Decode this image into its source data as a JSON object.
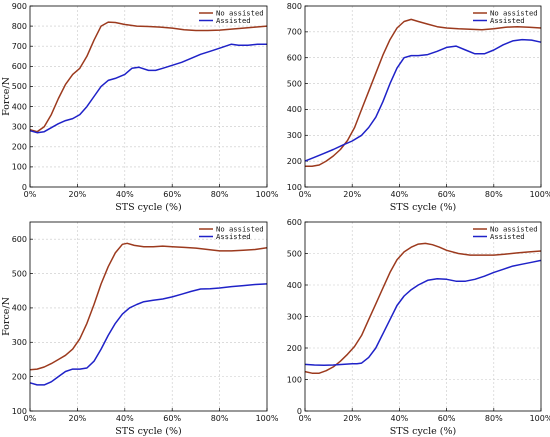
{
  "chart_data": [
    {
      "type": "line",
      "xlabel": "STS cycle (%)",
      "ylabel": "Force/N",
      "xlim": [
        0,
        100
      ],
      "ylim": [
        0,
        900
      ],
      "xticks": [
        "0%",
        "20%",
        "40%",
        "60%",
        "80%",
        "100%"
      ],
      "yticks": [
        "0",
        "100",
        "200",
        "300",
        "400",
        "500",
        "600",
        "700",
        "800",
        "900"
      ],
      "grid": true,
      "legend": "top-right",
      "series": [
        {
          "name": "No assisted",
          "color": "#9c3a1e",
          "x": [
            0,
            3,
            6,
            9,
            12,
            15,
            18,
            21,
            24,
            27,
            30,
            33,
            36,
            40,
            45,
            50,
            55,
            60,
            65,
            70,
            75,
            80,
            85,
            90,
            95,
            100
          ],
          "y": [
            285,
            275,
            300,
            360,
            440,
            510,
            560,
            590,
            650,
            730,
            800,
            820,
            818,
            808,
            800,
            798,
            795,
            790,
            782,
            778,
            778,
            780,
            785,
            790,
            795,
            800
          ]
        },
        {
          "name": "Assisted",
          "color": "#1f22c8",
          "x": [
            0,
            3,
            6,
            9,
            12,
            15,
            18,
            21,
            24,
            27,
            30,
            33,
            36,
            40,
            43,
            46,
            50,
            53,
            56,
            60,
            64,
            68,
            72,
            76,
            80,
            85,
            88,
            92,
            96,
            100
          ],
          "y": [
            280,
            270,
            275,
            295,
            315,
            330,
            340,
            360,
            400,
            450,
            500,
            530,
            540,
            560,
            590,
            595,
            580,
            580,
            590,
            605,
            620,
            640,
            660,
            675,
            690,
            710,
            705,
            705,
            710,
            710
          ]
        }
      ]
    },
    {
      "type": "line",
      "xlabel": "STS cycle (%)",
      "ylabel": "",
      "xlim": [
        0,
        100
      ],
      "ylim": [
        100,
        800
      ],
      "xticks": [
        "0%",
        "20%",
        "40%",
        "60%",
        "80%",
        "100%"
      ],
      "yticks": [
        "100",
        "200",
        "300",
        "400",
        "500",
        "600",
        "700",
        "800"
      ],
      "grid": true,
      "legend": "top-right",
      "series": [
        {
          "name": "No assisted",
          "color": "#9c3a1e",
          "x": [
            0,
            3,
            6,
            9,
            12,
            15,
            18,
            21,
            24,
            27,
            30,
            33,
            36,
            39,
            42,
            45,
            48,
            52,
            56,
            60,
            65,
            70,
            75,
            80,
            85,
            90,
            95,
            100
          ],
          "y": [
            180,
            180,
            185,
            200,
            220,
            245,
            280,
            330,
            400,
            470,
            540,
            610,
            670,
            715,
            740,
            748,
            740,
            730,
            720,
            715,
            712,
            710,
            708,
            712,
            718,
            720,
            718,
            715
          ]
        },
        {
          "name": "Assisted",
          "color": "#1f22c8",
          "x": [
            0,
            4,
            8,
            12,
            16,
            20,
            24,
            27,
            30,
            33,
            36,
            39,
            42,
            45,
            48,
            52,
            56,
            60,
            64,
            68,
            72,
            76,
            80,
            84,
            88,
            92,
            96,
            100
          ],
          "y": [
            200,
            215,
            230,
            245,
            262,
            278,
            300,
            330,
            370,
            430,
            500,
            560,
            600,
            608,
            608,
            612,
            625,
            640,
            645,
            630,
            615,
            615,
            630,
            650,
            665,
            670,
            668,
            660
          ]
        }
      ]
    },
    {
      "type": "line",
      "xlabel": "STS cycle (%)",
      "ylabel": "Force/N",
      "xlim": [
        0,
        100
      ],
      "ylim": [
        100,
        650
      ],
      "xticks": [
        "0%",
        "20%",
        "40%",
        "60%",
        "80%",
        "100%"
      ],
      "yticks": [
        "100",
        "200",
        "300",
        "400",
        "500",
        "600"
      ],
      "grid": true,
      "legend": "top-right",
      "series": [
        {
          "name": "No assisted",
          "color": "#9c3a1e",
          "x": [
            0,
            3,
            6,
            9,
            12,
            15,
            18,
            21,
            24,
            27,
            30,
            33,
            36,
            39,
            41,
            44,
            48,
            52,
            56,
            60,
            65,
            70,
            75,
            80,
            85,
            90,
            95,
            100
          ],
          "y": [
            220,
            222,
            228,
            238,
            250,
            262,
            280,
            310,
            355,
            410,
            470,
            520,
            560,
            585,
            588,
            582,
            578,
            578,
            580,
            578,
            576,
            574,
            570,
            566,
            566,
            568,
            570,
            575
          ]
        },
        {
          "name": "Assisted",
          "color": "#1f22c8",
          "x": [
            0,
            3,
            6,
            9,
            12,
            15,
            18,
            21,
            24,
            27,
            30,
            33,
            36,
            39,
            42,
            45,
            48,
            52,
            56,
            60,
            64,
            68,
            72,
            76,
            80,
            85,
            90,
            95,
            100
          ],
          "y": [
            182,
            176,
            176,
            185,
            200,
            215,
            222,
            222,
            225,
            245,
            280,
            320,
            355,
            382,
            400,
            410,
            418,
            422,
            426,
            432,
            440,
            448,
            455,
            456,
            458,
            462,
            465,
            468,
            470
          ]
        }
      ]
    },
    {
      "type": "line",
      "xlabel": "STS cycle (%)",
      "ylabel": "",
      "xlim": [
        0,
        100
      ],
      "ylim": [
        0,
        600
      ],
      "xticks": [
        "0%",
        "20%",
        "40%",
        "60%",
        "80%",
        "100%"
      ],
      "yticks": [
        "0",
        "100",
        "200",
        "300",
        "400",
        "500",
        "600"
      ],
      "grid": true,
      "legend": "top-right",
      "series": [
        {
          "name": "No assisted",
          "color": "#9c3a1e",
          "x": [
            0,
            3,
            6,
            9,
            12,
            15,
            18,
            21,
            24,
            27,
            30,
            33,
            36,
            39,
            42,
            45,
            48,
            51,
            54,
            57,
            60,
            65,
            70,
            75,
            80,
            85,
            90,
            95,
            100
          ],
          "y": [
            125,
            120,
            120,
            128,
            140,
            158,
            180,
            205,
            240,
            290,
            340,
            390,
            440,
            480,
            505,
            520,
            530,
            532,
            528,
            520,
            510,
            500,
            495,
            495,
            495,
            498,
            502,
            505,
            508
          ]
        },
        {
          "name": "Assisted",
          "color": "#1f22c8",
          "x": [
            0,
            4,
            8,
            12,
            16,
            20,
            22,
            24,
            27,
            30,
            33,
            36,
            39,
            42,
            45,
            48,
            52,
            56,
            60,
            64,
            68,
            72,
            76,
            80,
            84,
            88,
            92,
            96,
            100
          ],
          "y": [
            148,
            146,
            145,
            146,
            148,
            150,
            150,
            152,
            170,
            200,
            245,
            290,
            335,
            365,
            385,
            400,
            415,
            420,
            418,
            412,
            412,
            418,
            428,
            440,
            450,
            460,
            466,
            472,
            478
          ]
        }
      ]
    }
  ]
}
